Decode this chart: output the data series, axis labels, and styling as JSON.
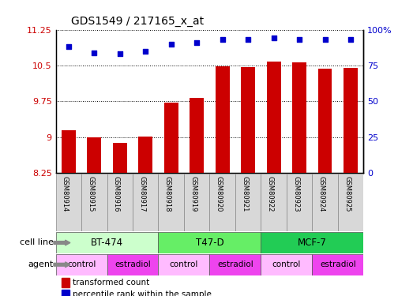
{
  "title": "GDS1549 / 217165_x_at",
  "samples": [
    "GSM80914",
    "GSM80915",
    "GSM80916",
    "GSM80917",
    "GSM80918",
    "GSM80919",
    "GSM80920",
    "GSM80921",
    "GSM80922",
    "GSM80923",
    "GSM80924",
    "GSM80925"
  ],
  "bar_values": [
    9.15,
    9.0,
    8.88,
    9.02,
    9.72,
    9.82,
    10.49,
    10.47,
    10.58,
    10.56,
    10.44,
    10.45
  ],
  "percentile_values": [
    88,
    84,
    83,
    85,
    90,
    91,
    93,
    93,
    94,
    93,
    93,
    93
  ],
  "bar_color": "#cc0000",
  "dot_color": "#0000cc",
  "ylim_left": [
    8.25,
    11.25
  ],
  "ylim_right": [
    0,
    100
  ],
  "yticks_left": [
    8.25,
    9.0,
    9.75,
    10.5,
    11.25
  ],
  "yticks_right": [
    0,
    25,
    50,
    75,
    100
  ],
  "ytick_labels_left": [
    "8.25",
    "9",
    "9.75",
    "10.5",
    "11.25"
  ],
  "ytick_labels_right": [
    "0",
    "25",
    "50",
    "75",
    "100%"
  ],
  "cell_lines": [
    {
      "label": "BT-474",
      "start": 0,
      "end": 4,
      "color": "#ccffcc"
    },
    {
      "label": "T47-D",
      "start": 4,
      "end": 8,
      "color": "#66ee66"
    },
    {
      "label": "MCF-7",
      "start": 8,
      "end": 12,
      "color": "#22cc55"
    }
  ],
  "agents": [
    {
      "label": "control",
      "start": 0,
      "end": 2,
      "color": "#ffbbff"
    },
    {
      "label": "estradiol",
      "start": 2,
      "end": 4,
      "color": "#ee44ee"
    },
    {
      "label": "control",
      "start": 4,
      "end": 6,
      "color": "#ffbbff"
    },
    {
      "label": "estradiol",
      "start": 6,
      "end": 8,
      "color": "#ee44ee"
    },
    {
      "label": "control",
      "start": 8,
      "end": 10,
      "color": "#ffbbff"
    },
    {
      "label": "estradiol",
      "start": 10,
      "end": 12,
      "color": "#ee44ee"
    }
  ],
  "legend_bar_label": "transformed count",
  "legend_dot_label": "percentile rank within the sample",
  "cell_line_label": "cell line",
  "agent_label": "agent",
  "background_color": "#ffffff"
}
